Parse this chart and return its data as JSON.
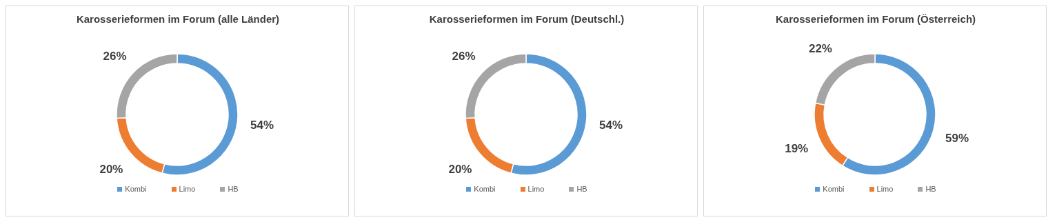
{
  "chart_data": [
    {
      "type": "donut",
      "title": "Karosserieformen im Forum (alle Länder)",
      "categories": [
        "Kombi",
        "Limo",
        "HB"
      ],
      "values": [
        54,
        20,
        26
      ],
      "value_labels": [
        "54%",
        "20%",
        "26%"
      ],
      "colors": [
        "#5b9bd5",
        "#ed7d31",
        "#a5a5a5"
      ],
      "legend": "bottom"
    },
    {
      "type": "donut",
      "title": "Karosserieformen im Forum (Deutschl.)",
      "categories": [
        "Kombi",
        "Limo",
        "HB"
      ],
      "values": [
        54,
        20,
        26
      ],
      "value_labels": [
        "54%",
        "20%",
        "26%"
      ],
      "colors": [
        "#5b9bd5",
        "#ed7d31",
        "#a5a5a5"
      ],
      "legend": "bottom"
    },
    {
      "type": "donut",
      "title": "Karosserieformen im Forum (Österreich)",
      "categories": [
        "Kombi",
        "Limo",
        "HB"
      ],
      "values": [
        59,
        19,
        22
      ],
      "value_labels": [
        "59%",
        "19%",
        "22%"
      ],
      "colors": [
        "#5b9bd5",
        "#ed7d31",
        "#a5a5a5"
      ],
      "legend": "bottom"
    }
  ]
}
